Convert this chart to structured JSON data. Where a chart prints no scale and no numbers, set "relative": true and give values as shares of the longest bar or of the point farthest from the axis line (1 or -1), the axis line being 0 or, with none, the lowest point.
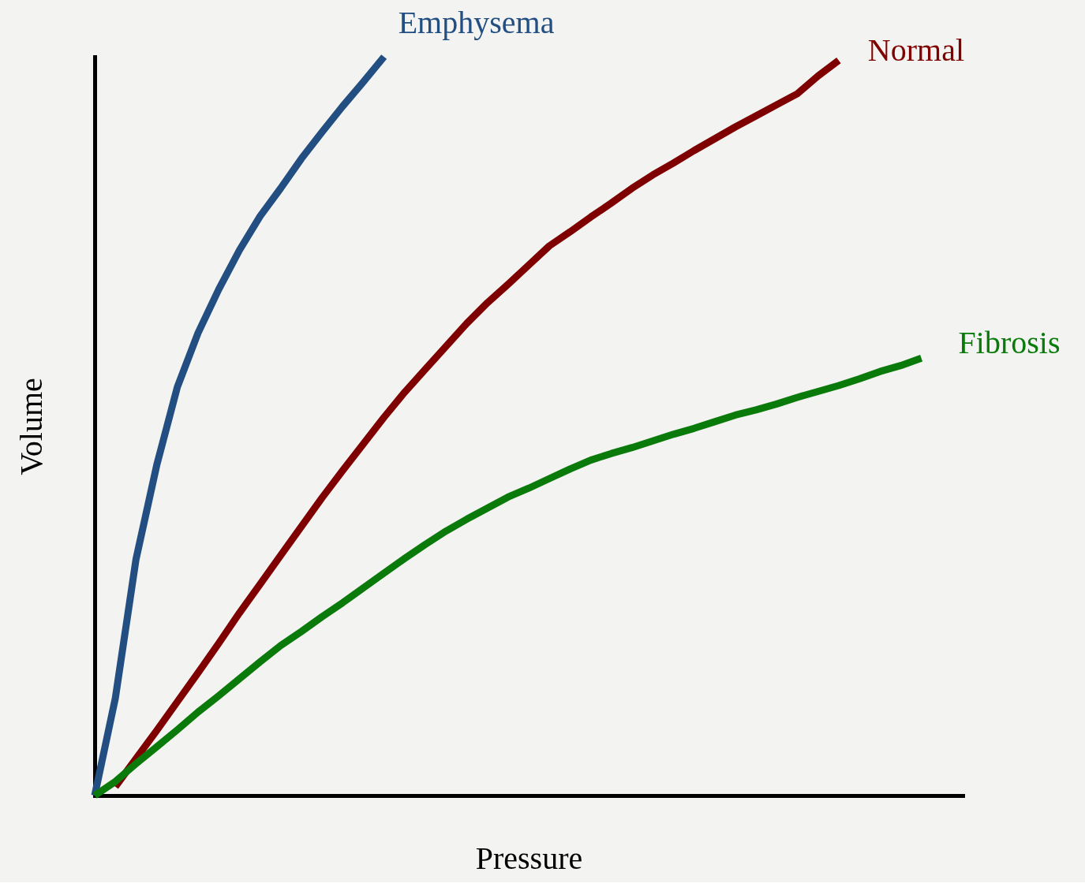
{
  "chart_data": {
    "type": "line",
    "relative": true,
    "xlabel": "Pressure",
    "ylabel": "Volume",
    "grid": false,
    "tick_labels": false,
    "categories": [
      null,
      null,
      null,
      null,
      null,
      null,
      null,
      null,
      null,
      null,
      null,
      null,
      null,
      null,
      null,
      null,
      null,
      null,
      null,
      null,
      null,
      null,
      null,
      null,
      null,
      null,
      null,
      null,
      null,
      null,
      null,
      null,
      null,
      null,
      null,
      null,
      null,
      null,
      null,
      null,
      null,
      null,
      null
    ],
    "series": [
      {
        "name": "Emphysema",
        "color": "#224e82",
        "values": [
          0.0,
          0.132,
          0.32,
          0.447,
          0.553,
          0.626,
          0.685,
          0.738,
          0.784,
          0.822,
          0.862,
          0.898,
          0.933,
          0.966,
          1.0,
          null,
          null,
          null,
          null,
          null,
          null,
          null,
          null,
          null,
          null,
          null,
          null,
          null,
          null,
          null,
          null,
          null,
          null,
          null,
          null,
          null,
          null,
          null,
          null,
          null,
          null,
          null,
          null
        ]
      },
      {
        "name": "Normal",
        "color": "#7f0000",
        "values": [
          null,
          0.012,
          0.05,
          0.088,
          0.127,
          0.166,
          0.206,
          0.247,
          0.286,
          0.325,
          0.364,
          0.403,
          0.44,
          0.476,
          0.512,
          0.546,
          0.577,
          0.608,
          0.639,
          0.667,
          0.692,
          0.718,
          0.744,
          0.763,
          0.783,
          0.802,
          0.822,
          0.84,
          0.856,
          0.873,
          0.889,
          0.905,
          0.92,
          0.935,
          0.95,
          0.974,
          0.995,
          null,
          null,
          null,
          null,
          null,
          null
        ]
      },
      {
        "name": "Fibrosis",
        "color": "#0a7a0a",
        "values": [
          0.0,
          0.019,
          0.043,
          0.066,
          0.089,
          0.113,
          0.135,
          0.158,
          0.181,
          0.203,
          0.222,
          0.242,
          0.261,
          0.281,
          0.301,
          0.321,
          0.34,
          0.358,
          0.374,
          0.389,
          0.404,
          0.416,
          0.429,
          0.442,
          0.454,
          0.463,
          0.471,
          0.48,
          0.489,
          0.497,
          0.506,
          0.515,
          0.522,
          0.53,
          0.539,
          0.547,
          0.555,
          0.564,
          0.574,
          0.582,
          0.592,
          null,
          null
        ]
      }
    ]
  }
}
